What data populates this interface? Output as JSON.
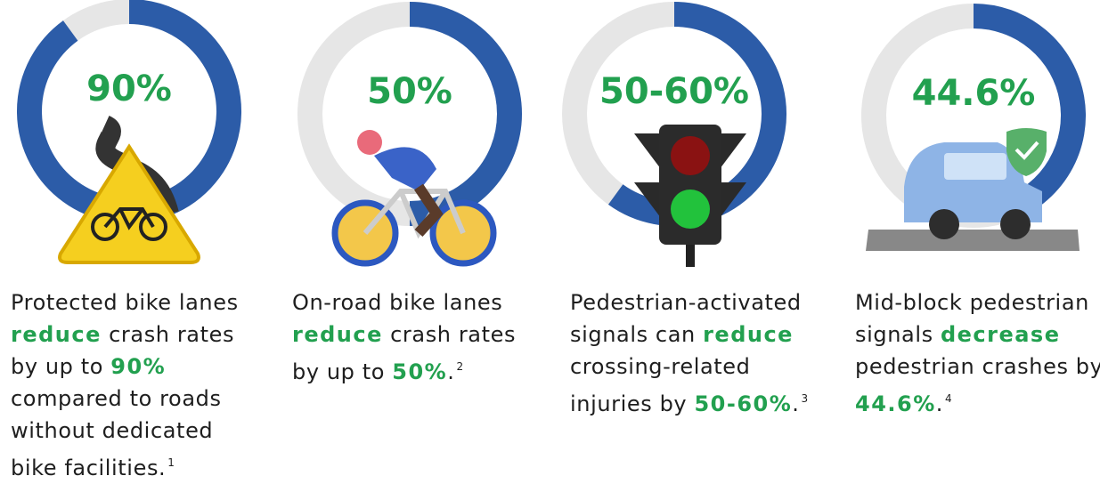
{
  "cards": [
    {
      "stat": "90%",
      "fill_percent": 90,
      "icon": "bike-sign",
      "lines": [
        [
          {
            "text": "Protected bike lanes"
          }
        ],
        [
          {
            "text": "reduce",
            "bold": true
          },
          {
            "text": " crash rates"
          }
        ],
        [
          {
            "text": "by up to "
          },
          {
            "text": "90%",
            "bold": true
          }
        ],
        [
          {
            "text": "compared to roads"
          }
        ],
        [
          {
            "text": "without dedicated"
          }
        ],
        [
          {
            "text": "bike facilities."
          },
          {
            "text": "1",
            "sup": true
          }
        ]
      ]
    },
    {
      "stat": "50%",
      "fill_percent": 50,
      "icon": "cyclist",
      "lines": [
        [
          {
            "text": "On-road bike lanes"
          }
        ],
        [
          {
            "text": "reduce",
            "bold": true
          },
          {
            "text": " crash rates"
          }
        ],
        [
          {
            "text": "by up to "
          },
          {
            "text": "50%",
            "bold": true
          },
          {
            "text": "."
          },
          {
            "text": "2",
            "sup": true
          }
        ]
      ]
    },
    {
      "stat": "50-60%",
      "fill_percent": 60,
      "icon": "traffic-light",
      "lines": [
        [
          {
            "text": "Pedestrian-activated"
          }
        ],
        [
          {
            "text": "signals can "
          },
          {
            "text": "reduce",
            "bold": true
          }
        ],
        [
          {
            "text": "crossing-related"
          }
        ],
        [
          {
            "text": "injuries by "
          },
          {
            "text": "50-60%",
            "bold": true
          },
          {
            "text": "."
          },
          {
            "text": "3",
            "sup": true
          }
        ]
      ]
    },
    {
      "stat": "44.6%",
      "fill_percent": 44.6,
      "icon": "car",
      "lines": [
        [
          {
            "text": "Mid-block pedestrian"
          }
        ],
        [
          {
            "text": "signals "
          },
          {
            "text": "decrease",
            "bold": true
          }
        ],
        [
          {
            "text": "pedestrian crashes by"
          }
        ],
        [
          {
            "text": "44.6%",
            "bold": true
          },
          {
            "text": "."
          },
          {
            "text": "4",
            "sup": true
          }
        ]
      ]
    }
  ]
}
